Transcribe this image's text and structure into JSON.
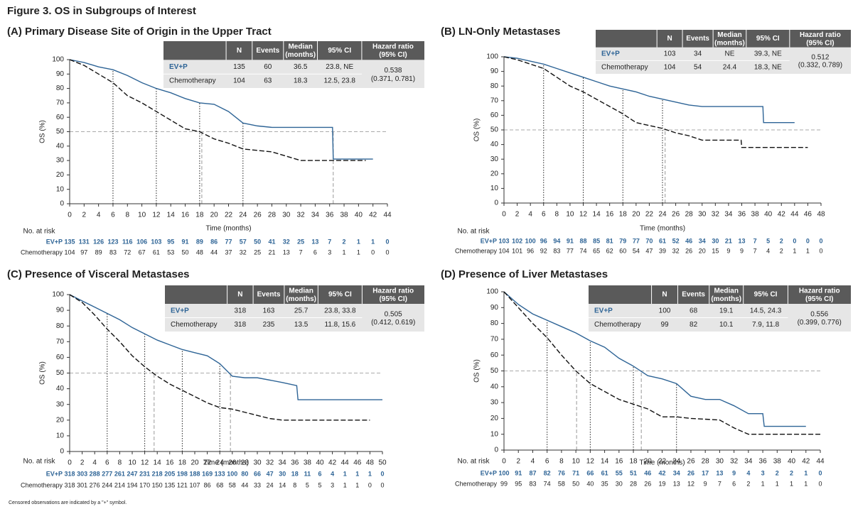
{
  "title": "Figure 3. OS in Subgroups of Interest",
  "footnote": "Censored observations are indicated by a \"+\" symbol.",
  "chart_data": [
    {
      "type": "line",
      "title": "(A) Primary Disease Site of Origin in the Upper Tract",
      "xlabel": "Time (months)",
      "ylabel": "OS (%)",
      "xlim": [
        0,
        44
      ],
      "xticks": [
        0,
        2,
        4,
        6,
        8,
        10,
        12,
        14,
        16,
        18,
        20,
        22,
        24,
        26,
        28,
        30,
        32,
        34,
        36,
        38,
        40,
        42,
        44
      ],
      "ylim": [
        0,
        100
      ],
      "yticks": [
        0,
        10,
        20,
        30,
        40,
        50,
        60,
        70,
        80,
        90,
        100
      ],
      "hline": 50,
      "median_lines": [
        18.3,
        36.5
      ],
      "landmark_lines": [
        6,
        12,
        18,
        24
      ],
      "series": [
        {
          "name": "EV+P",
          "color": "#2e6496",
          "x": [
            0,
            2,
            4,
            6,
            8,
            10,
            12,
            14,
            16,
            18,
            20,
            22,
            24,
            26,
            28,
            30,
            36.4,
            36.5,
            42
          ],
          "values": [
            100,
            98,
            95,
            93,
            89,
            84,
            80,
            77,
            73,
            70,
            69,
            64,
            56,
            54,
            53,
            53,
            53,
            31,
            31
          ]
        },
        {
          "name": "Chemotherapy",
          "color": "#111111",
          "x": [
            0,
            2,
            4,
            6,
            8,
            10,
            12,
            14,
            16,
            18,
            20,
            22,
            24,
            26,
            28,
            30,
            32,
            36,
            41
          ],
          "values": [
            100,
            96,
            90,
            84,
            75,
            70,
            64,
            58,
            52,
            50,
            45,
            42,
            38,
            37,
            36,
            33,
            30,
            30,
            30
          ]
        }
      ],
      "table": {
        "columns": [
          "N",
          "Events",
          "Median (months)",
          "95% CI",
          "Hazard ratio (95% CI)"
        ],
        "rows": [
          [
            "135",
            "60",
            "36.5",
            "23.8, NE"
          ],
          [
            "104",
            "63",
            "18.3",
            "12.5, 23.8"
          ]
        ],
        "hazard_ratio": "0.538",
        "hazard_ratio_ci": "(0.371, 0.781)"
      },
      "at_risk": {
        "label": "No. at risk",
        "rows": [
          [
            135,
            131,
            126,
            123,
            116,
            106,
            103,
            95,
            91,
            89,
            86,
            77,
            57,
            50,
            41,
            32,
            25,
            13,
            7,
            2,
            1,
            1,
            0
          ],
          [
            104,
            97,
            89,
            83,
            72,
            67,
            61,
            53,
            50,
            48,
            44,
            37,
            32,
            25,
            21,
            13,
            7,
            6,
            3,
            1,
            1,
            0,
            0
          ]
        ]
      }
    },
    {
      "type": "line",
      "title": "(B) LN-Only Metastases",
      "xlabel": "Time (months)",
      "ylabel": "OS (%)",
      "xlim": [
        0,
        48
      ],
      "xticks": [
        0,
        2,
        4,
        6,
        8,
        10,
        12,
        14,
        16,
        18,
        20,
        22,
        24,
        26,
        28,
        30,
        32,
        34,
        36,
        38,
        40,
        42,
        44,
        46,
        48
      ],
      "ylim": [
        0,
        100
      ],
      "yticks": [
        0,
        10,
        20,
        30,
        40,
        50,
        60,
        70,
        80,
        90,
        100
      ],
      "hline": 50,
      "median_lines": [
        24.4
      ],
      "landmark_lines": [
        6,
        12,
        18,
        24
      ],
      "series": [
        {
          "name": "EV+P",
          "color": "#2e6496",
          "x": [
            0,
            2,
            4,
            6,
            8,
            10,
            12,
            14,
            16,
            18,
            20,
            22,
            24,
            26,
            28,
            30,
            39.2,
            39.3,
            44
          ],
          "values": [
            100,
            99,
            97,
            95,
            92,
            89,
            86,
            83,
            80,
            78,
            76,
            73,
            71,
            69,
            67,
            66,
            66,
            55,
            55
          ]
        },
        {
          "name": "Chemotherapy",
          "color": "#111111",
          "x": [
            0,
            2,
            4,
            6,
            8,
            10,
            12,
            14,
            16,
            18,
            20,
            22,
            24,
            26,
            28,
            30,
            35.9,
            36,
            46
          ],
          "values": [
            100,
            98,
            95,
            92,
            86,
            80,
            76,
            71,
            66,
            61,
            55,
            53,
            51,
            48,
            46,
            43,
            43,
            38,
            38
          ]
        }
      ],
      "table": {
        "columns": [
          "N",
          "Events",
          "Median (months)",
          "95% CI",
          "Hazard ratio (95% CI)"
        ],
        "rows": [
          [
            "103",
            "34",
            "NE",
            "39.3, NE"
          ],
          [
            "104",
            "54",
            "24.4",
            "18.3, NE"
          ]
        ],
        "hazard_ratio": "0.512",
        "hazard_ratio_ci": "(0.332, 0.789)"
      },
      "at_risk": {
        "label": "No. at risk",
        "rows": [
          [
            103,
            102,
            100,
            96,
            94,
            91,
            88,
            85,
            81,
            79,
            77,
            70,
            61,
            52,
            46,
            34,
            30,
            21,
            13,
            7,
            5,
            2,
            0,
            0,
            0
          ],
          [
            104,
            101,
            96,
            92,
            83,
            77,
            74,
            65,
            62,
            60,
            54,
            47,
            39,
            32,
            26,
            20,
            15,
            9,
            9,
            7,
            4,
            2,
            1,
            1,
            0
          ]
        ]
      }
    },
    {
      "type": "line",
      "title": "(C) Presence of Visceral Metastases",
      "xlabel": "Time (months)",
      "ylabel": "OS (%)",
      "xlim": [
        0,
        50
      ],
      "xticks": [
        0,
        2,
        4,
        6,
        8,
        10,
        12,
        14,
        16,
        18,
        20,
        22,
        24,
        26,
        28,
        30,
        32,
        34,
        36,
        38,
        40,
        42,
        44,
        46,
        48,
        50
      ],
      "ylim": [
        0,
        100
      ],
      "yticks": [
        0,
        10,
        20,
        30,
        40,
        50,
        60,
        70,
        80,
        90,
        100
      ],
      "hline": 50,
      "median_lines": [
        13.5,
        25.7
      ],
      "landmark_lines": [
        6,
        12,
        18,
        24
      ],
      "series": [
        {
          "name": "EV+P",
          "color": "#2e6496",
          "x": [
            0,
            2,
            4,
            6,
            8,
            10,
            12,
            14,
            16,
            18,
            20,
            22,
            24,
            26,
            28,
            30,
            34,
            36.3,
            36.5,
            50
          ],
          "values": [
            100,
            96,
            92,
            88,
            84,
            79,
            75,
            71,
            68,
            65,
            63,
            61,
            56,
            48,
            47,
            47,
            44,
            42,
            33,
            33
          ]
        },
        {
          "name": "Chemotherapy",
          "color": "#111111",
          "x": [
            0,
            2,
            4,
            6,
            8,
            10,
            12,
            14,
            16,
            18,
            20,
            22,
            24,
            26,
            28,
            30,
            32,
            34,
            48
          ],
          "values": [
            100,
            95,
            87,
            78,
            70,
            61,
            54,
            48,
            43,
            39,
            35,
            31,
            28,
            27,
            25,
            23,
            21,
            20,
            20
          ]
        }
      ],
      "table": {
        "columns": [
          "N",
          "Events",
          "Median (months)",
          "95% CI",
          "Hazard ratio (95% CI)"
        ],
        "rows": [
          [
            "318",
            "163",
            "25.7",
            "23.8, 33.8"
          ],
          [
            "318",
            "235",
            "13.5",
            "11.8, 15.6"
          ]
        ],
        "hazard_ratio": "0.505",
        "hazard_ratio_ci": "(0.412, 0.619)"
      },
      "at_risk": {
        "label": "No. at risk",
        "rows": [
          [
            318,
            303,
            288,
            277,
            261,
            247,
            231,
            218,
            205,
            198,
            188,
            169,
            133,
            100,
            80,
            66,
            47,
            30,
            18,
            11,
            6,
            4,
            1,
            1,
            1,
            0
          ],
          [
            318,
            301,
            276,
            244,
            214,
            194,
            170,
            150,
            135,
            121,
            107,
            86,
            68,
            58,
            44,
            33,
            24,
            14,
            8,
            5,
            5,
            3,
            1,
            1,
            0,
            0
          ]
        ]
      }
    },
    {
      "type": "line",
      "title": "(D) Presence of Liver Metastases",
      "xlabel": "Time (months)",
      "ylabel": "OS (%)",
      "xlim": [
        0,
        44
      ],
      "xticks": [
        0,
        2,
        4,
        6,
        8,
        10,
        12,
        14,
        16,
        18,
        20,
        22,
        24,
        26,
        28,
        30,
        32,
        34,
        36,
        38,
        40,
        42,
        44
      ],
      "ylim": [
        0,
        100
      ],
      "yticks": [
        0,
        10,
        20,
        30,
        40,
        50,
        60,
        70,
        80,
        90,
        100
      ],
      "hline": 50,
      "median_lines": [
        10.1,
        19.1
      ],
      "landmark_lines": [
        6,
        12,
        18,
        24
      ],
      "series": [
        {
          "name": "EV+P",
          "color": "#2e6496",
          "x": [
            0,
            2,
            4,
            6,
            8,
            10,
            12,
            14,
            16,
            18,
            20,
            22,
            24,
            26,
            28,
            30,
            32,
            34,
            36,
            36.2,
            42
          ],
          "values": [
            100,
            92,
            86,
            82,
            78,
            74,
            69,
            65,
            58,
            53,
            47,
            45,
            42,
            34,
            32,
            32,
            28,
            23,
            23,
            15,
            15
          ]
        },
        {
          "name": "Chemotherapy",
          "color": "#111111",
          "x": [
            0,
            2,
            4,
            6,
            8,
            10,
            12,
            14,
            16,
            18,
            20,
            22,
            24,
            26,
            30,
            32,
            34,
            44
          ],
          "values": [
            100,
            90,
            80,
            71,
            60,
            50,
            42,
            37,
            32,
            29,
            26,
            21,
            21,
            20,
            19,
            14,
            10,
            10
          ]
        }
      ],
      "table": {
        "columns": [
          "N",
          "Events",
          "Median (months)",
          "95% CI",
          "Hazard ratio (95% CI)"
        ],
        "rows": [
          [
            "100",
            "68",
            "19.1",
            "14.5, 24.3"
          ],
          [
            "99",
            "82",
            "10.1",
            "7.9, 11.8"
          ]
        ],
        "hazard_ratio": "0.556",
        "hazard_ratio_ci": "(0.399, 0.776)"
      },
      "at_risk": {
        "label": "No. at risk",
        "rows": [
          [
            100,
            91,
            87,
            82,
            76,
            71,
            66,
            61,
            55,
            51,
            46,
            42,
            34,
            26,
            17,
            13,
            9,
            4,
            3,
            2,
            2,
            1,
            0
          ],
          [
            99,
            95,
            83,
            74,
            58,
            50,
            40,
            35,
            30,
            28,
            26,
            19,
            13,
            12,
            9,
            7,
            6,
            2,
            1,
            1,
            1,
            1,
            0
          ]
        ]
      }
    }
  ]
}
